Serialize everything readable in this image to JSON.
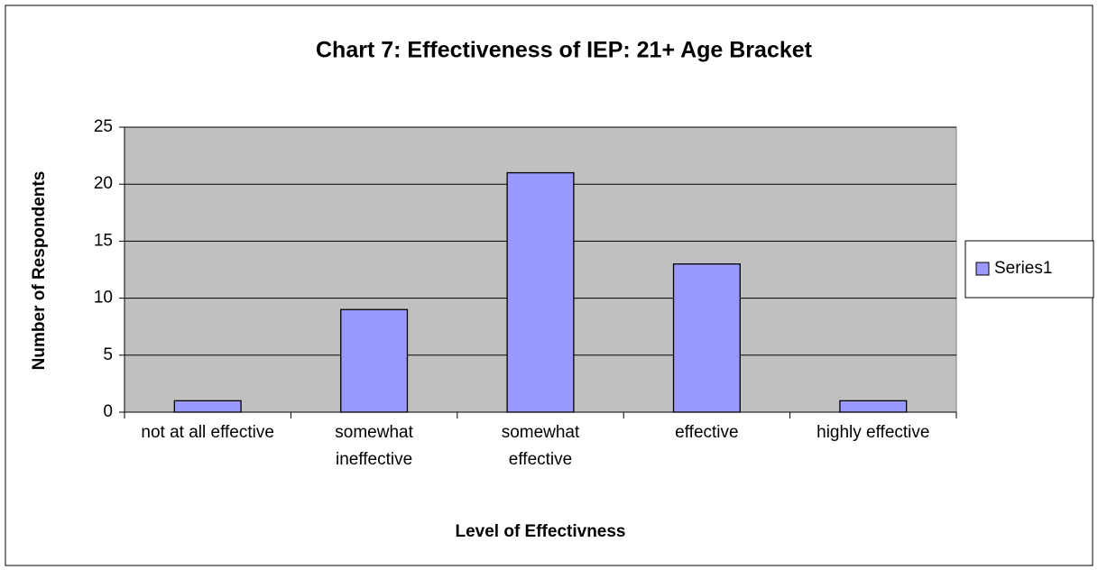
{
  "chart_data": {
    "type": "bar",
    "title": "Chart 7: Effectiveness of IEP: 21+ Age Bracket",
    "x_label": "Level of Effectivness",
    "y_label": "Number of Respondents",
    "categories": [
      "not at all effective",
      "somewhat ineffective",
      "somewhat effective",
      "effective",
      "highly effective"
    ],
    "series": [
      {
        "name": "Series1",
        "color": "#9999ff",
        "values": [
          1,
          9,
          21,
          13,
          1
        ]
      }
    ],
    "ylim": [
      0,
      25
    ],
    "yticks": [
      0,
      5,
      10,
      15,
      20,
      25
    ],
    "grid": true,
    "legend": "right",
    "plot_background": "#c0c0c0"
  }
}
